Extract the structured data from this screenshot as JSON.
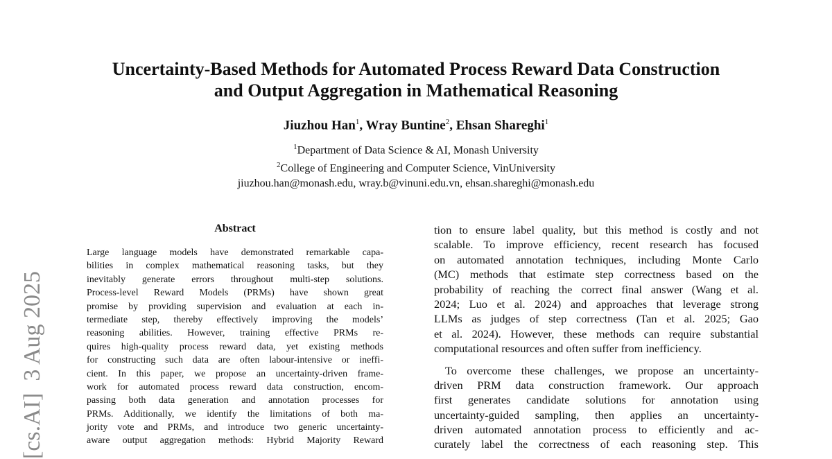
{
  "sidebar": {
    "text": "[cs.AI]  3 Aug 2025"
  },
  "header": {
    "title_lines": [
      "Uncertainty-Based Methods for Automated Process Reward Data Construction",
      "and Output Aggregation in Mathematical Reasoning"
    ],
    "authors": [
      {
        "name": "Jiuzhou Han",
        "mark": "1"
      },
      {
        "name": "Wray Buntine",
        "mark": "2"
      },
      {
        "name": "Ehsan Shareghi",
        "mark": "1"
      }
    ],
    "author_separator": ", ",
    "affiliations": [
      {
        "mark": "1",
        "text": "Department of Data Science & AI, Monash University"
      },
      {
        "mark": "2",
        "text": "College of Engineering and Computer Science, VinUniversity"
      }
    ],
    "emails": "jiuzhou.han@monash.edu, wray.b@vinuni.edu.vn, ehsan.shareghi@monash.edu"
  },
  "abstract": {
    "heading": "Abstract",
    "lines": [
      "Large language models have demonstrated remarkable capa-",
      "bilities in complex mathematical reasoning tasks, but they",
      "inevitably generate errors throughout multi-step solutions.",
      "Process-level Reward Models (PRMs) have shown great",
      "promise by providing supervision and evaluation at each in-",
      "termediate step, thereby effectively improving the models’",
      "reasoning abilities. However, training effective PRMs re-",
      "quires high-quality process reward data, yet existing methods",
      "for constructing such data are often labour-intensive or ineffi-",
      "cient. In this paper, we propose an uncertainty-driven frame-",
      "work for automated process reward data construction, encom-",
      "passing both data generation and annotation processes for",
      "PRMs. Additionally, we identify the limitations of both ma-",
      "jority vote and PRMs, and introduce two generic uncertainty-",
      "aware output aggregation methods: Hybrid Majority Reward"
    ]
  },
  "body": {
    "paragraphs": [
      [
        "tion to ensure label quality, but this method is costly and not",
        "scalable. To improve efficiency, recent research has focused",
        "on automated annotation techniques, including Monte Carlo",
        "(MC) methods that estimate step correctness based on the",
        "probability of reaching the correct final answer (Wang et al.",
        "2024; Luo et al. 2024) and approaches that leverage strong",
        "LLMs as judges of step correctness (Tan et al. 2025; Gao",
        "et al. 2024). However, these methods can require substantial",
        "computational resources and often suffer from inefficiency."
      ],
      [
        "To overcome these challenges, we propose an uncertainty-",
        "driven PRM data construction framework. Our approach",
        "first generates candidate solutions for annotation using",
        "uncertainty-guided sampling, then applies an uncertainty-",
        "driven automated annotation process to efficiently and ac-",
        "curately label the correctness of each reasoning step. This"
      ]
    ]
  }
}
